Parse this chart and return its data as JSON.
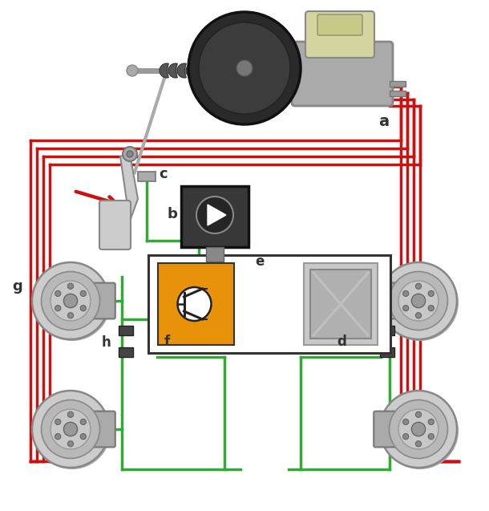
{
  "bg_color": "#ffffff",
  "red": "#cc1111",
  "green": "#33aa33",
  "blue": "#1199dd",
  "orange": "#e8920a",
  "lgray": "#d0d0d0",
  "dgray": "#555555",
  "labels": {
    "a": "a",
    "b": "b",
    "c": "c",
    "d": "d",
    "e": "e",
    "f": "f",
    "g": "g",
    "h": "h"
  }
}
